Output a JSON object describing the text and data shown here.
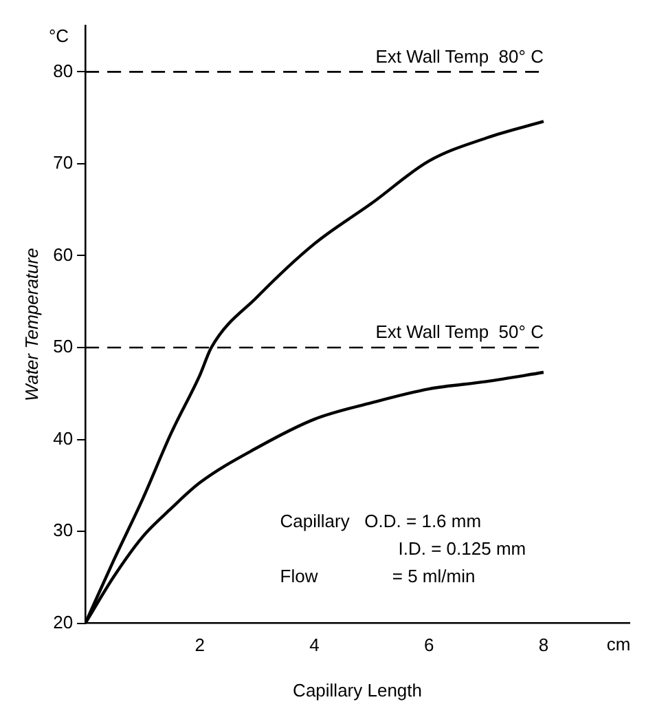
{
  "chart_data": {
    "type": "line",
    "ylabel": "Water Temperature",
    "xlabel": "Capillary Length",
    "annotations": [
      "Capillary   O.D. = 1.6 mm",
      "I.D. = 0.125 mm",
      "Flow               = 5 ml/min",
      "°C",
      "cm"
    ],
    "xlim": [
      0,
      9.5
    ],
    "ylim": [
      20,
      85
    ],
    "xticks": [
      {
        "value": 0,
        "label": null
      },
      2,
      4,
      6,
      8
    ],
    "yticks": [
      20,
      30,
      40,
      50,
      60,
      70,
      80
    ],
    "ref_lines": [
      {
        "axis": "y",
        "value": 80,
        "label": "Ext Wall Temp  80° C",
        "color": "#000000",
        "line_style": "dashed"
      },
      {
        "axis": "y",
        "value": 50,
        "label": "Ext Wall Temp  50° C",
        "color": "#000000",
        "line_style": "dashed"
      }
    ],
    "series": [
      {
        "color": "#000000",
        "x": [
          0,
          0.5,
          1,
          1.5,
          2,
          2.2,
          3,
          4,
          5,
          6,
          7,
          8
        ],
        "values": [
          20,
          26.9,
          33.5,
          40.7,
          47,
          50,
          55.5,
          61.3,
          65.7,
          70.3,
          72.8,
          74.6
        ]
      },
      {
        "color": "#000000",
        "x": [
          0,
          0.5,
          1,
          1.5,
          2,
          3,
          4,
          5,
          6,
          7,
          8
        ],
        "values": [
          20,
          25.1,
          29.4,
          32.5,
          35.3,
          39.1,
          42.2,
          44,
          45.5,
          46.3,
          47.3
        ]
      }
    ],
    "grid": false,
    "legend": false,
    "marker": "none",
    "line_style": "solid"
  }
}
